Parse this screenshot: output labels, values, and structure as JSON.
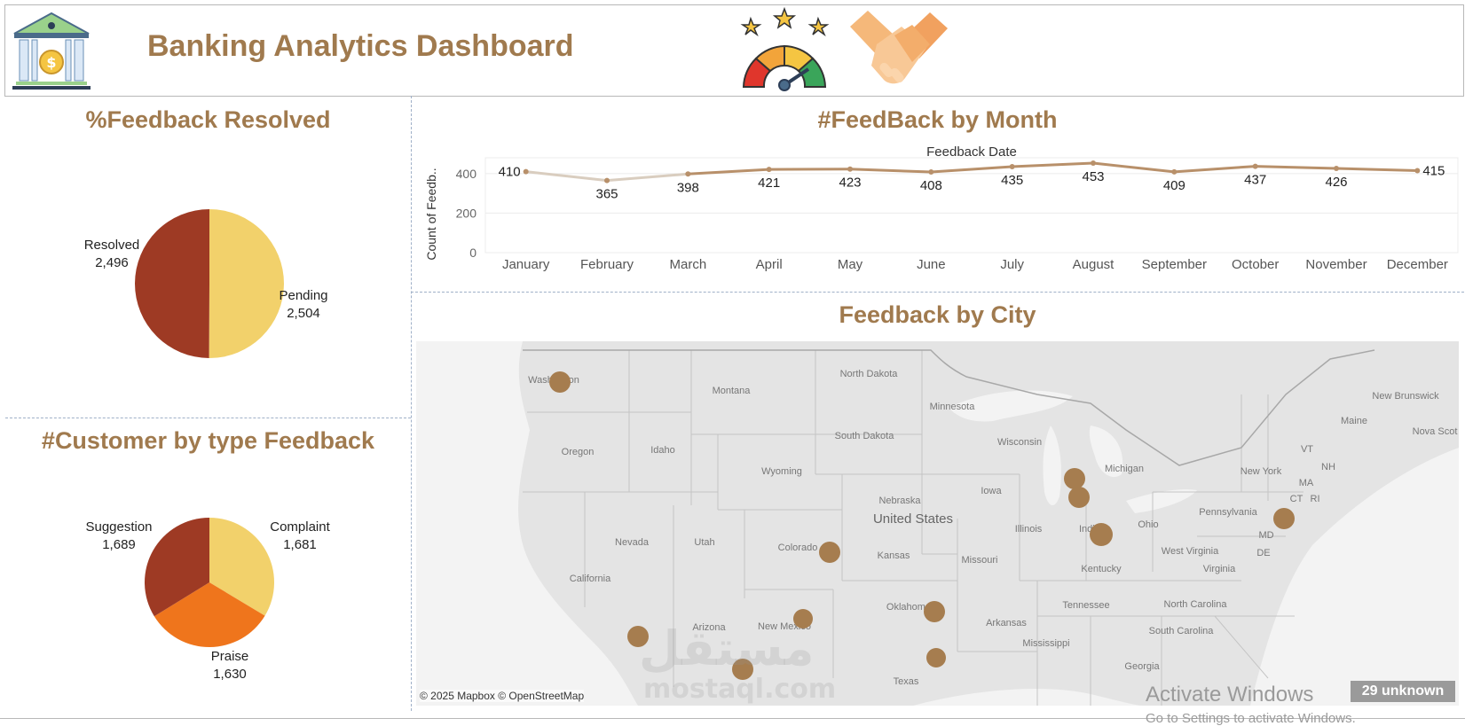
{
  "header": {
    "title": "Banking Analytics Dashboard",
    "icons": [
      "bank-icon",
      "rating-gauge-icon",
      "handshake-icon"
    ]
  },
  "colors": {
    "title": "#a07a4e",
    "resolved": "#9e3a24",
    "pending": "#f2d16b",
    "suggestion": "#9e3a24",
    "complaint": "#f2d16b",
    "praise": "#ef751c",
    "line": "#b8906a",
    "map_dot": "#a67d4f"
  },
  "panels": {
    "resolved_title": "%Feedback Resolved",
    "customer_title": "#Customer by type Feedback",
    "month_title": "#FeedBack by Month",
    "city_title": "Feedback by City"
  },
  "chart_data": [
    {
      "type": "pie",
      "title": "%Feedback Resolved",
      "labels": [
        "Pending",
        "Resolved"
      ],
      "values": [
        2504,
        2496
      ],
      "value_labels": [
        "2,504",
        "2,496"
      ]
    },
    {
      "type": "pie",
      "title": "#Customer by type Feedback",
      "labels": [
        "Complaint",
        "Praise",
        "Suggestion"
      ],
      "values": [
        1681,
        1630,
        1689
      ],
      "value_labels": [
        "1,681",
        "1,630",
        "1,689"
      ]
    },
    {
      "type": "line",
      "title": "#FeedBack by Month",
      "xlabel": "Feedback Date",
      "ylabel": "Count of Feedb..",
      "categories": [
        "January",
        "February",
        "March",
        "April",
        "May",
        "June",
        "July",
        "August",
        "September",
        "October",
        "November",
        "December"
      ],
      "values": [
        410,
        365,
        398,
        421,
        423,
        408,
        435,
        453,
        409,
        437,
        426,
        415
      ],
      "yticks": [
        0,
        200,
        400
      ],
      "ylim": [
        0,
        480
      ],
      "grid": true
    }
  ],
  "map": {
    "title": "Feedback by City",
    "state_labels": [
      "Washington",
      "Montana",
      "North Dakota",
      "Minnesota",
      "Oregon",
      "Idaho",
      "South Dakota",
      "Wisconsin",
      "Michigan",
      "Wyoming",
      "Iowa",
      "Nebraska",
      "United States",
      "Illinois",
      "Indiana",
      "Ohio",
      "Pennsylvania",
      "New York",
      "Nevada",
      "Utah",
      "Colorado",
      "Kansas",
      "Missouri",
      "Kentucky",
      "West Virginia",
      "Virginia",
      "California",
      "Arizona",
      "New Mexico",
      "Oklahoma",
      "Tennessee",
      "Arkansas",
      "North Carolina",
      "South Carolina",
      "Mississippi",
      "Georgia",
      "Texas",
      "Maine",
      "New Brunswick",
      "Nova Scot",
      "VT",
      "MA",
      "CT",
      "RI",
      "MD",
      "DE",
      "NH"
    ],
    "credit": "© 2025 Mapbox © OpenStreetMap",
    "unknown": "29 unknown",
    "cities": [
      "Seattle",
      "Chicago",
      "Chicago South",
      "Indianapolis",
      "New York",
      "Denver",
      "Albuquerque",
      "Oklahoma City",
      "Los Angeles",
      "Phoenix",
      "Dallas"
    ]
  },
  "overlay": {
    "activate_line1": "Activate Windows",
    "activate_line2": "Go to Settings to activate Windows.",
    "watermark": "مستقل",
    "watermark2": "mostaql.com"
  }
}
